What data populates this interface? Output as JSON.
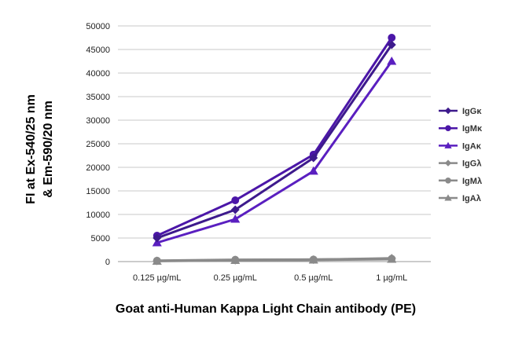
{
  "chart_data": {
    "type": "line",
    "title": "",
    "xlabel": "Goat anti-Human Kappa Light Chain antibody (PE)",
    "ylabel_lines": [
      "FI at Ex-540/25 nm",
      "& Em-590/20 nm"
    ],
    "categories": [
      "0.125 µg/mL",
      "0.25 µg/mL",
      "0.5 µg/mL",
      "1 µg/mL"
    ],
    "ylim": [
      0,
      50000
    ],
    "yticks": [
      0,
      5000,
      10000,
      15000,
      20000,
      25000,
      30000,
      35000,
      40000,
      45000,
      50000
    ],
    "grid": "horizontal",
    "legend_position": "right",
    "series": [
      {
        "name": "IgGκ",
        "marker": "diamond",
        "color": "#3d1a8c",
        "values": [
          5000,
          11000,
          22000,
          46000
        ]
      },
      {
        "name": "IgMκ",
        "marker": "circle",
        "color": "#4b16a8",
        "values": [
          5500,
          13000,
          22700,
          47500
        ]
      },
      {
        "name": "IgAκ",
        "marker": "triangle",
        "color": "#5a1fc0",
        "values": [
          4000,
          9000,
          19200,
          42500
        ]
      },
      {
        "name": "IgGλ",
        "marker": "diamond",
        "color": "#8a8a8a",
        "values": [
          150,
          300,
          400,
          700
        ]
      },
      {
        "name": "IgMλ",
        "marker": "circle",
        "color": "#8a8a8a",
        "values": [
          200,
          400,
          450,
          600
        ]
      },
      {
        "name": "IgAλ",
        "marker": "triangle",
        "color": "#8a8a8a",
        "values": [
          100,
          250,
          350,
          500
        ]
      }
    ]
  }
}
